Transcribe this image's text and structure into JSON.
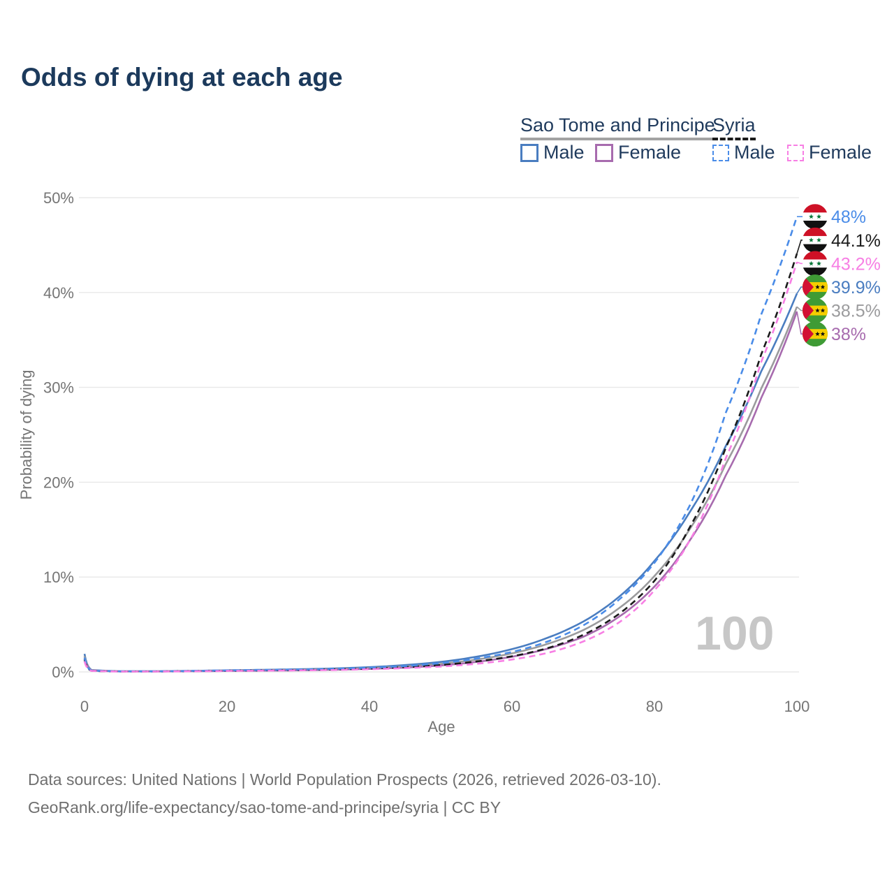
{
  "title": "Odds of dying at each age",
  "watermark": "100",
  "legend": {
    "groups": [
      {
        "label": "Sao Tome and Principe",
        "line_style": "solid",
        "underline_color": "#a3a3a3",
        "items": [
          {
            "label": "Male",
            "color": "#4a7dc0"
          },
          {
            "label": "Female",
            "color": "#a76bae"
          }
        ]
      },
      {
        "label": "Syria",
        "line_style": "dashed",
        "underline_color": "#1a1a1a",
        "items": [
          {
            "label": "Male",
            "color": "#4a8ce8"
          },
          {
            "label": "Female",
            "color": "#f77fe4"
          }
        ]
      }
    ]
  },
  "footer": {
    "line1": "Data sources: United Nations | World Population Prospects (2026, retrieved 2026-03-10).",
    "line2": "GeoRank.org/life-expectancy/sao-tome-and-principe/syria | CC BY"
  },
  "chart_data": {
    "type": "line",
    "title": "Odds of dying at each age",
    "xlabel": "Age",
    "ylabel": "Probability of dying",
    "xlim": [
      0,
      100
    ],
    "ylim": [
      0,
      50
    ],
    "xticks": [
      0,
      20,
      40,
      60,
      80,
      100
    ],
    "yticks": [
      0,
      10,
      20,
      30,
      40,
      50
    ],
    "ytick_suffix": "%",
    "grid": "horizontal",
    "legend_position": "top-right",
    "x": [
      0,
      1,
      5,
      10,
      15,
      20,
      25,
      30,
      35,
      40,
      45,
      50,
      55,
      60,
      65,
      70,
      75,
      80,
      85,
      90,
      95,
      100
    ],
    "series": [
      {
        "name": "sao-tome-male",
        "country": "Sao Tome and Principe",
        "sex": "Male",
        "color": "#4a7dc0",
        "dash": false,
        "values": [
          1.9,
          0.2,
          0.07,
          0.07,
          0.11,
          0.17,
          0.22,
          0.28,
          0.36,
          0.5,
          0.72,
          1.05,
          1.6,
          2.4,
          3.6,
          5.3,
          7.9,
          11.7,
          16.9,
          23.8,
          31.7,
          39.9
        ]
      },
      {
        "name": "sao-tome-total",
        "country": "Sao Tome and Principe",
        "sex": "Both",
        "color": "#9b9b9d",
        "dash": false,
        "values": [
          1.65,
          0.17,
          0.06,
          0.06,
          0.09,
          0.13,
          0.17,
          0.22,
          0.29,
          0.4,
          0.57,
          0.85,
          1.3,
          1.95,
          2.95,
          4.4,
          6.7,
          10.1,
          15.1,
          21.9,
          29.9,
          38.5
        ]
      },
      {
        "name": "sao-tome-female",
        "country": "Sao Tome and Principe",
        "sex": "Female",
        "color": "#a76bae",
        "dash": false,
        "values": [
          1.4,
          0.15,
          0.05,
          0.05,
          0.07,
          0.1,
          0.13,
          0.17,
          0.23,
          0.32,
          0.45,
          0.68,
          1.05,
          1.6,
          2.45,
          3.7,
          5.8,
          9.0,
          13.9,
          20.7,
          28.9,
          38.0
        ]
      },
      {
        "name": "syria-total",
        "country": "Syria",
        "sex": "Both",
        "color": "#1b1b1b",
        "dash": true,
        "values": [
          1.3,
          0.11,
          0.05,
          0.05,
          0.08,
          0.13,
          0.16,
          0.2,
          0.26,
          0.35,
          0.5,
          0.72,
          1.1,
          1.65,
          2.5,
          3.9,
          6.1,
          9.6,
          15.3,
          23.6,
          33.5,
          44.1
        ]
      },
      {
        "name": "syria-male",
        "country": "Syria",
        "sex": "Male",
        "color": "#4a8ce8",
        "dash": true,
        "values": [
          1.5,
          0.13,
          0.06,
          0.06,
          0.1,
          0.16,
          0.2,
          0.25,
          0.32,
          0.44,
          0.62,
          0.92,
          1.4,
          2.1,
          3.2,
          4.9,
          7.6,
          11.5,
          17.6,
          27.3,
          37.7,
          48.0
        ]
      },
      {
        "name": "syria-female",
        "country": "Syria",
        "sex": "Female",
        "color": "#f77fe4",
        "dash": true,
        "values": [
          1.1,
          0.1,
          0.04,
          0.04,
          0.06,
          0.1,
          0.13,
          0.16,
          0.2,
          0.28,
          0.4,
          0.56,
          0.85,
          1.3,
          2.0,
          3.2,
          5.2,
          8.6,
          13.9,
          22.5,
          32.7,
          43.2
        ]
      }
    ],
    "end_labels": [
      {
        "text": "48%",
        "flag": "syria",
        "color": "#4a8ce8",
        "value": 48.0
      },
      {
        "text": "44.1%",
        "flag": "syria",
        "color": "#1b1b1b",
        "value": 44.1
      },
      {
        "text": "43.2%",
        "flag": "syria",
        "color": "#f77fe4",
        "value": 43.2
      },
      {
        "text": "39.9%",
        "flag": "sao-tome",
        "color": "#4a7dc0",
        "value": 39.9
      },
      {
        "text": "38.5%",
        "flag": "sao-tome",
        "color": "#9b9b9d",
        "value": 38.5
      },
      {
        "text": "38%",
        "flag": "sao-tome",
        "color": "#a76bae",
        "value": 38.0
      }
    ]
  }
}
